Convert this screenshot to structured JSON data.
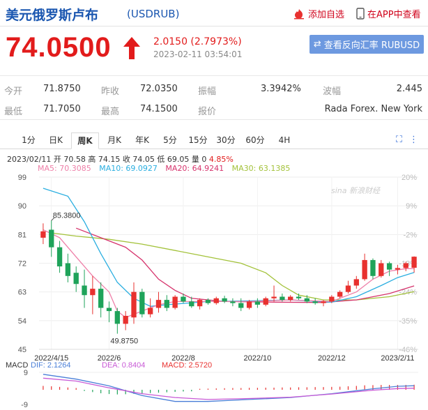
{
  "header": {
    "title": "美元俄罗斯卢布",
    "code": "(USDRUB)",
    "add_watch": "添加自选",
    "app_view": "在APP中查看"
  },
  "quote": {
    "price": "74.0500",
    "change": "2.0150 (2.7973%)",
    "time": "2023-02-11 03:54:01",
    "reverse_button": "查看反向汇率 RUBUSD"
  },
  "stats": {
    "open_label": "今开",
    "open": "71.8750",
    "prev_label": "昨收",
    "prev": "72.0350",
    "amp_label": "振幅",
    "amp": "3.3942%",
    "wave_label": "波幅",
    "wave": "2.445",
    "low_label": "最低",
    "low": "71.7050",
    "high_label": "最高",
    "high": "74.1500",
    "quote_label": "报价",
    "quote_src": "Rada Forex. New York"
  },
  "tabs": [
    "1分",
    "日K",
    "周K",
    "月K",
    "年K",
    "5分",
    "15分",
    "30分",
    "60分",
    "4H"
  ],
  "active_tab": "周K",
  "bar_info": {
    "date": "2023/02/11",
    "text": "开 70.58 高 74.15 收 74.05 低 69.05 量 0",
    "pct": "4.85%"
  },
  "ma_info": {
    "ma5": "MA5: 70.3085",
    "ma10": "MA10: 69.0927",
    "ma20": "MA20: 64.9241",
    "ma30": "MA30: 63.1385"
  },
  "colors": {
    "up": "#e8312f",
    "down": "#1fa35a",
    "ma5": "#ee7fa8",
    "ma10": "#2aaee0",
    "ma20": "#d6336c",
    "ma30": "#a3c23a",
    "dif": "#4a7fd8",
    "dea": "#c85ad6"
  },
  "macd_info": {
    "label": "MACD",
    "dif": "DIF: 2.1264",
    "dea": "DEA: 0.8404",
    "macd": "MACD: 2.5720"
  },
  "watermark": "sina 新浪财经",
  "chart_data": {
    "type": "candlestick",
    "y_ticks": [
      "99",
      "90",
      "81",
      "72",
      "63",
      "54",
      "45"
    ],
    "right_ticks": [
      "20%",
      "9%",
      "-2%",
      "-13%",
      "-24%",
      "-35%",
      "-46%"
    ],
    "ylim": [
      45,
      99
    ],
    "x_ticks": [
      {
        "label": "2022/4/15",
        "index": 1
      },
      {
        "label": "2022/6",
        "index": 8
      },
      {
        "label": "2022/8",
        "index": 17
      },
      {
        "label": "2022/10",
        "index": 26
      },
      {
        "label": "2022/12",
        "index": 35
      },
      {
        "label": "2023/2/11",
        "index": 43
      }
    ],
    "annotations": {
      "high": "85.3800",
      "low": "49.8750"
    },
    "candles": [
      [
        80.0,
        84.5,
        78.0,
        82.0
      ],
      [
        82.5,
        85.4,
        74.0,
        77.0
      ],
      [
        77.0,
        79.0,
        69.0,
        71.0
      ],
      [
        72.0,
        75.0,
        66.0,
        68.0
      ],
      [
        69.0,
        71.0,
        63.0,
        65.5
      ],
      [
        65.0,
        70.0,
        58.0,
        62.0
      ],
      [
        62.0,
        68.0,
        56.0,
        64.0
      ],
      [
        64.0,
        66.0,
        55.0,
        58.0
      ],
      [
        58.0,
        60.0,
        53.5,
        57.0
      ],
      [
        57.0,
        58.0,
        49.9,
        53.0
      ],
      [
        53.0,
        57.0,
        51.0,
        55.5
      ],
      [
        55.0,
        66.0,
        53.0,
        63.0
      ],
      [
        63.0,
        64.0,
        55.0,
        56.0
      ],
      [
        56.0,
        61.0,
        55.0,
        58.0
      ],
      [
        58.0,
        63.0,
        56.5,
        60.5
      ],
      [
        60.5,
        62.0,
        57.0,
        58.0
      ],
      [
        58.0,
        62.0,
        57.5,
        61.5
      ],
      [
        61.5,
        62.5,
        59.5,
        60.0
      ],
      [
        60.0,
        61.5,
        58.0,
        58.5
      ],
      [
        58.5,
        61.0,
        57.5,
        60.5
      ],
      [
        60.5,
        61.0,
        59.0,
        59.5
      ],
      [
        59.5,
        61.5,
        59.0,
        61.0
      ],
      [
        61.0,
        61.8,
        59.5,
        60.0
      ],
      [
        60.0,
        61.0,
        58.5,
        59.5
      ],
      [
        59.5,
        61.0,
        57.0,
        58.0
      ],
      [
        58.0,
        60.5,
        57.5,
        60.0
      ],
      [
        60.0,
        61.0,
        58.0,
        59.0
      ],
      [
        59.0,
        61.5,
        58.5,
        61.0
      ],
      [
        61.0,
        65.0,
        60.0,
        61.5
      ],
      [
        61.5,
        62.5,
        60.0,
        60.5
      ],
      [
        60.5,
        62.0,
        60.0,
        61.5
      ],
      [
        61.5,
        62.5,
        60.5,
        61.0
      ],
      [
        61.0,
        62.0,
        59.5,
        60.0
      ],
      [
        60.0,
        61.0,
        59.0,
        59.5
      ],
      [
        59.5,
        60.5,
        58.5,
        60.0
      ],
      [
        60.0,
        62.0,
        59.5,
        61.5
      ],
      [
        61.5,
        63.5,
        61.0,
        63.0
      ],
      [
        63.0,
        66.5,
        62.5,
        65.0
      ],
      [
        65.0,
        68.0,
        64.0,
        67.0
      ],
      [
        67.0,
        75.0,
        66.5,
        73.0
      ],
      [
        73.0,
        73.5,
        67.0,
        68.0
      ],
      [
        68.0,
        73.0,
        67.5,
        72.0
      ],
      [
        72.0,
        72.5,
        68.0,
        70.0
      ],
      [
        70.0,
        71.5,
        68.5,
        70.5
      ],
      [
        70.5,
        72.5,
        69.5,
        72.0
      ],
      [
        70.58,
        74.15,
        69.05,
        74.05
      ]
    ],
    "ma5": [
      [
        0,
        82.5
      ],
      [
        2,
        80
      ],
      [
        4,
        74
      ],
      [
        6,
        68
      ],
      [
        8,
        63
      ],
      [
        9,
        57
      ],
      [
        10,
        55
      ],
      [
        12,
        57
      ],
      [
        14,
        59
      ],
      [
        16,
        60
      ],
      [
        20,
        60
      ],
      [
        25,
        60
      ],
      [
        30,
        60.5
      ],
      [
        35,
        60
      ],
      [
        38,
        63
      ],
      [
        40,
        67
      ],
      [
        42,
        69.5
      ],
      [
        44,
        70.3
      ],
      [
        45,
        70.3
      ]
    ],
    "ma10": [
      [
        0,
        95.5
      ],
      [
        3,
        93
      ],
      [
        5,
        85
      ],
      [
        7,
        75
      ],
      [
        9,
        66
      ],
      [
        11,
        61
      ],
      [
        13,
        58.5
      ],
      [
        15,
        59
      ],
      [
        20,
        60
      ],
      [
        25,
        60.2
      ],
      [
        30,
        60.5
      ],
      [
        35,
        59.8
      ],
      [
        38,
        61.5
      ],
      [
        41,
        65
      ],
      [
        43,
        67.5
      ],
      [
        45,
        69.1
      ]
    ],
    "ma20": [
      [
        4,
        83
      ],
      [
        7,
        80
      ],
      [
        10,
        77
      ],
      [
        12,
        73
      ],
      [
        14,
        67
      ],
      [
        16,
        63.5
      ],
      [
        18,
        61
      ],
      [
        22,
        60
      ],
      [
        28,
        59.8
      ],
      [
        34,
        59.7
      ],
      [
        38,
        60.5
      ],
      [
        42,
        62.5
      ],
      [
        45,
        64.9
      ]
    ],
    "ma30": [
      [
        1,
        81.5
      ],
      [
        4,
        80.5
      ],
      [
        8,
        79.5
      ],
      [
        12,
        78
      ],
      [
        16,
        76
      ],
      [
        20,
        74
      ],
      [
        24,
        72
      ],
      [
        27,
        69
      ],
      [
        29,
        65
      ],
      [
        31,
        62
      ],
      [
        34,
        60.5
      ],
      [
        38,
        60.5
      ],
      [
        42,
        61.5
      ],
      [
        45,
        63.1
      ]
    ],
    "macd": {
      "ylim": [
        -9,
        9
      ],
      "y_ticks": [
        "9",
        "-9"
      ],
      "dif": [
        [
          0,
          8
        ],
        [
          4,
          5.5
        ],
        [
          8,
          2
        ],
        [
          12,
          -3
        ],
        [
          16,
          -6
        ],
        [
          20,
          -6
        ],
        [
          25,
          -5
        ],
        [
          30,
          -4
        ],
        [
          35,
          -2
        ],
        [
          40,
          0.5
        ],
        [
          43,
          1.8
        ],
        [
          45,
          2.1
        ]
      ],
      "dea": [
        [
          0,
          6
        ],
        [
          4,
          4.5
        ],
        [
          8,
          1
        ],
        [
          12,
          -2
        ],
        [
          16,
          -4
        ],
        [
          20,
          -5
        ],
        [
          25,
          -4.5
        ],
        [
          30,
          -3.8
        ],
        [
          35,
          -2.2
        ],
        [
          40,
          -0.2
        ],
        [
          43,
          0.6
        ],
        [
          45,
          0.84
        ]
      ],
      "hist": [
        2,
        1.8,
        1.5,
        1.2,
        0.9,
        -0.6,
        -1.2,
        -1.8,
        -2.2,
        -2.4,
        -2.3,
        -2.1,
        -1.9,
        -1.7,
        -1.5,
        -1.3,
        -1.1,
        -0.9,
        -0.8,
        0.5,
        0.6,
        0.7,
        0.8,
        0.9,
        0.9,
        1.0,
        1.0,
        1.1,
        1.1,
        1.2,
        1.2,
        1.3,
        1.3,
        1.4,
        1.4,
        1.5,
        1.6,
        1.8,
        2.0,
        2.3,
        2.4,
        2.5,
        2.5,
        2.5,
        2.5,
        2.6
      ]
    }
  }
}
